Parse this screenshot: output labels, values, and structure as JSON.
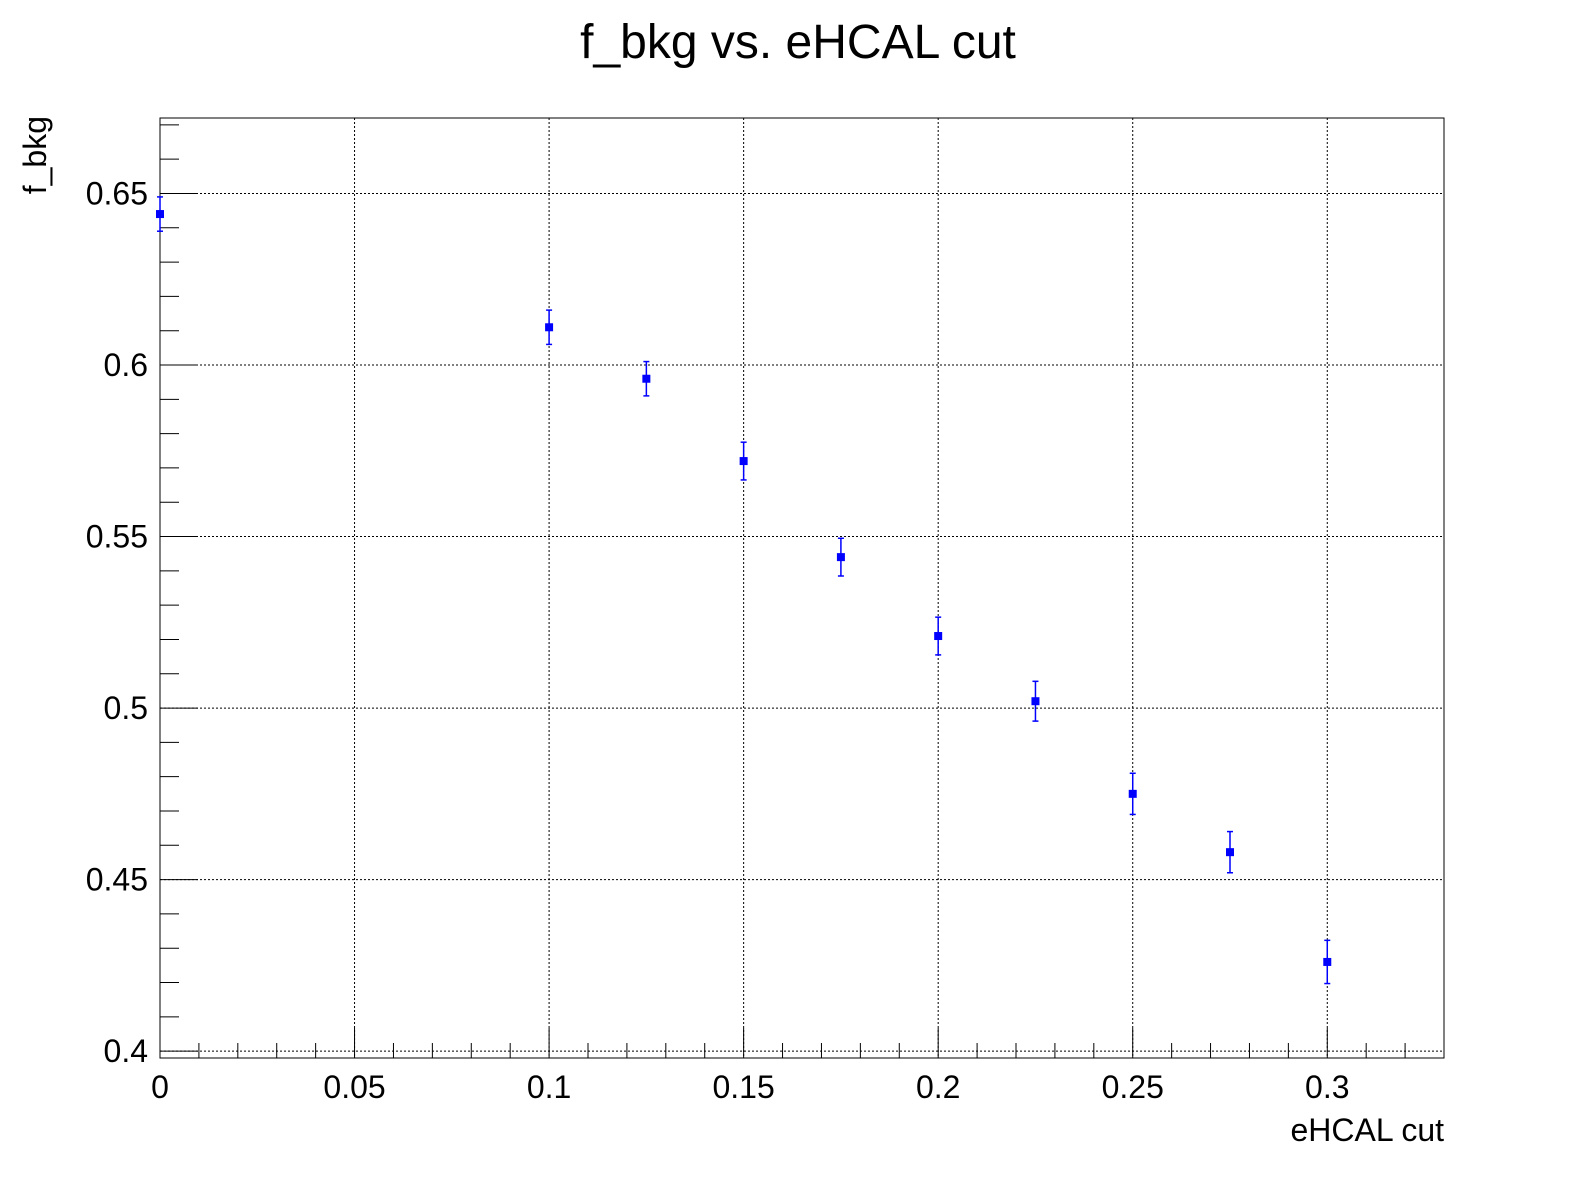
{
  "chart_data": {
    "type": "scatter",
    "title": "f_bkg vs. eHCAL cut",
    "xlabel": "eHCAL cut",
    "ylabel": "f_bkg",
    "xlim": [
      0,
      0.33
    ],
    "ylim": [
      0.398,
      0.672
    ],
    "grid": true,
    "legend": "none",
    "x_ticks": [
      {
        "value": 0,
        "label": "0"
      },
      {
        "value": 0.05,
        "label": "0.05"
      },
      {
        "value": 0.1,
        "label": "0.1"
      },
      {
        "value": 0.15,
        "label": "0.15"
      },
      {
        "value": 0.2,
        "label": "0.2"
      },
      {
        "value": 0.25,
        "label": "0.25"
      },
      {
        "value": 0.3,
        "label": "0.3"
      }
    ],
    "y_ticks": [
      {
        "value": 0.4,
        "label": "0.4"
      },
      {
        "value": 0.45,
        "label": "0.45"
      },
      {
        "value": 0.5,
        "label": "0.5"
      },
      {
        "value": 0.55,
        "label": "0.55"
      },
      {
        "value": 0.6,
        "label": "0.6"
      },
      {
        "value": 0.65,
        "label": "0.65"
      }
    ],
    "x_minor_step": 0.01,
    "y_minor_step": 0.01,
    "series": [
      {
        "color": "#0000ff",
        "marker": "square",
        "points": [
          {
            "x": 0.0,
            "y": 0.644,
            "err": 0.005
          },
          {
            "x": 0.1,
            "y": 0.611,
            "err": 0.005
          },
          {
            "x": 0.125,
            "y": 0.596,
            "err": 0.005
          },
          {
            "x": 0.15,
            "y": 0.572,
            "err": 0.0055
          },
          {
            "x": 0.175,
            "y": 0.544,
            "err": 0.0055
          },
          {
            "x": 0.2,
            "y": 0.521,
            "err": 0.0055
          },
          {
            "x": 0.225,
            "y": 0.502,
            "err": 0.0058
          },
          {
            "x": 0.25,
            "y": 0.475,
            "err": 0.006
          },
          {
            "x": 0.275,
            "y": 0.458,
            "err": 0.006
          },
          {
            "x": 0.3,
            "y": 0.426,
            "err": 0.0063
          }
        ]
      }
    ]
  }
}
